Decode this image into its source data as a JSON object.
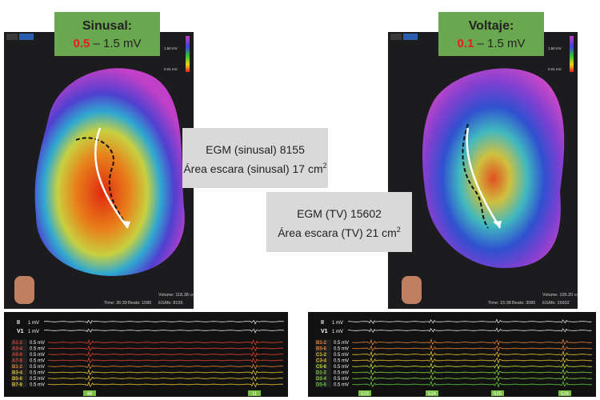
{
  "left_panel": {
    "title": "Sinusal:",
    "range_low": "0.5",
    "range_rest": "– 1.5 mV",
    "scale": {
      "top": "1.50 mV",
      "bottom": "0.01 mV"
    },
    "map_stats": {
      "time": "Time: 36:39",
      "beats": "Beats: 1580",
      "volume": "Volume: 118.38 cc",
      "egms": "EGMs: 8155"
    },
    "ecg": {
      "leads": [
        "II",
        "V1"
      ],
      "lead_gain": "1 mV",
      "channels": [
        "A1-2",
        "A3-4",
        "A5-6",
        "A7-8",
        "B1-2",
        "B3-4",
        "B5-6",
        "B7-8"
      ],
      "channel_gain": "0.5 mV",
      "markers": [
        "46",
        "11"
      ]
    }
  },
  "right_panel": {
    "title": "Voltaje:",
    "range_low": "0.1",
    "range_rest": "– 1.5 mV",
    "scale": {
      "top": "1.50 mV",
      "bottom": "0.01 mV"
    },
    "map_stats": {
      "time": "Time: 15:38",
      "beats": "Beats: 3080",
      "volume": "Volume: 105.20 cc",
      "egms": "EGMs: 15602"
    },
    "ecg": {
      "leads": [
        "II",
        "V1"
      ],
      "lead_gain": "1 mV",
      "channels": [
        "B1-2",
        "B5-6",
        "C1-2",
        "C3-4",
        "C5-6",
        "D1-2",
        "D3-4",
        "D5-6"
      ],
      "channel_gain": "0.5 mV",
      "markers": [
        "523",
        "524",
        "525",
        "526"
      ]
    }
  },
  "summary": [
    {
      "line1": "EGM (sinusal) 8155",
      "line2": "Área escara (sinusal) 17 cm",
      "line2_sup": "2"
    },
    {
      "line1": "EGM (TV) 15602",
      "line2": "Área escara (TV)  21 cm",
      "line2_sup": "2"
    }
  ]
}
